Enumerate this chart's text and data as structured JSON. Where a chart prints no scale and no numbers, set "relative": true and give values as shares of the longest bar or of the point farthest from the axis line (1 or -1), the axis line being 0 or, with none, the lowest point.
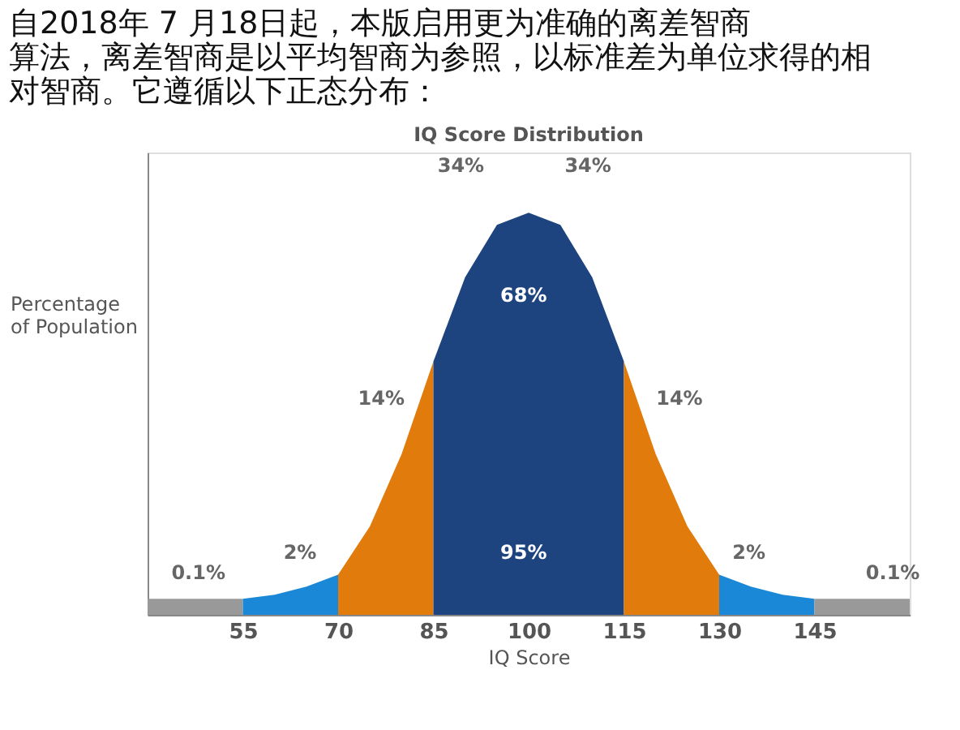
{
  "chart_data": {
    "type": "area",
    "title": "IQ Score Distribution",
    "xlabel": "IQ Score",
    "ylabel": "Percentage of Population",
    "relative": true,
    "xlim": [
      40,
      160
    ],
    "xticks": [
      55,
      70,
      85,
      100,
      115,
      130,
      145
    ],
    "grid": false,
    "series": [
      {
        "color": "#999999",
        "x": [
          40,
          55
        ],
        "values": [
          0.04,
          0.04
        ]
      },
      {
        "color": "#1a88d6",
        "x": [
          55,
          60,
          65,
          70
        ],
        "values": [
          0.04,
          0.05,
          0.07,
          0.1
        ]
      },
      {
        "color": "#e07b0c",
        "x": [
          70,
          75,
          80,
          85
        ],
        "values": [
          0.1,
          0.22,
          0.4,
          0.63
        ]
      },
      {
        "color": "#1e4480",
        "x": [
          85,
          90,
          95,
          100,
          105,
          110,
          115
        ],
        "values": [
          0.63,
          0.84,
          0.97,
          1,
          0.97,
          0.84,
          0.63
        ]
      },
      {
        "color": "#e07b0c",
        "x": [
          115,
          120,
          125,
          130
        ],
        "values": [
          0.63,
          0.4,
          0.22,
          0.1
        ]
      },
      {
        "color": "#1a88d6",
        "x": [
          130,
          135,
          140,
          145
        ],
        "values": [
          0.1,
          0.07,
          0.05,
          0.04
        ]
      },
      {
        "color": "#999999",
        "x": [
          145,
          160
        ],
        "values": [
          0.04,
          0.04
        ]
      }
    ],
    "annotations": [
      "自2018年 7 月18日起，本版启用更为准确的离差智商算法，离差智商是以平均智商为参照，以标准差为单位求得的相对智商。它遵循以下正态分布：",
      "34%",
      "34%",
      "68%",
      "14%",
      "14%",
      "95%",
      "2%",
      "2%",
      "0.1%",
      "0.1%"
    ]
  }
}
